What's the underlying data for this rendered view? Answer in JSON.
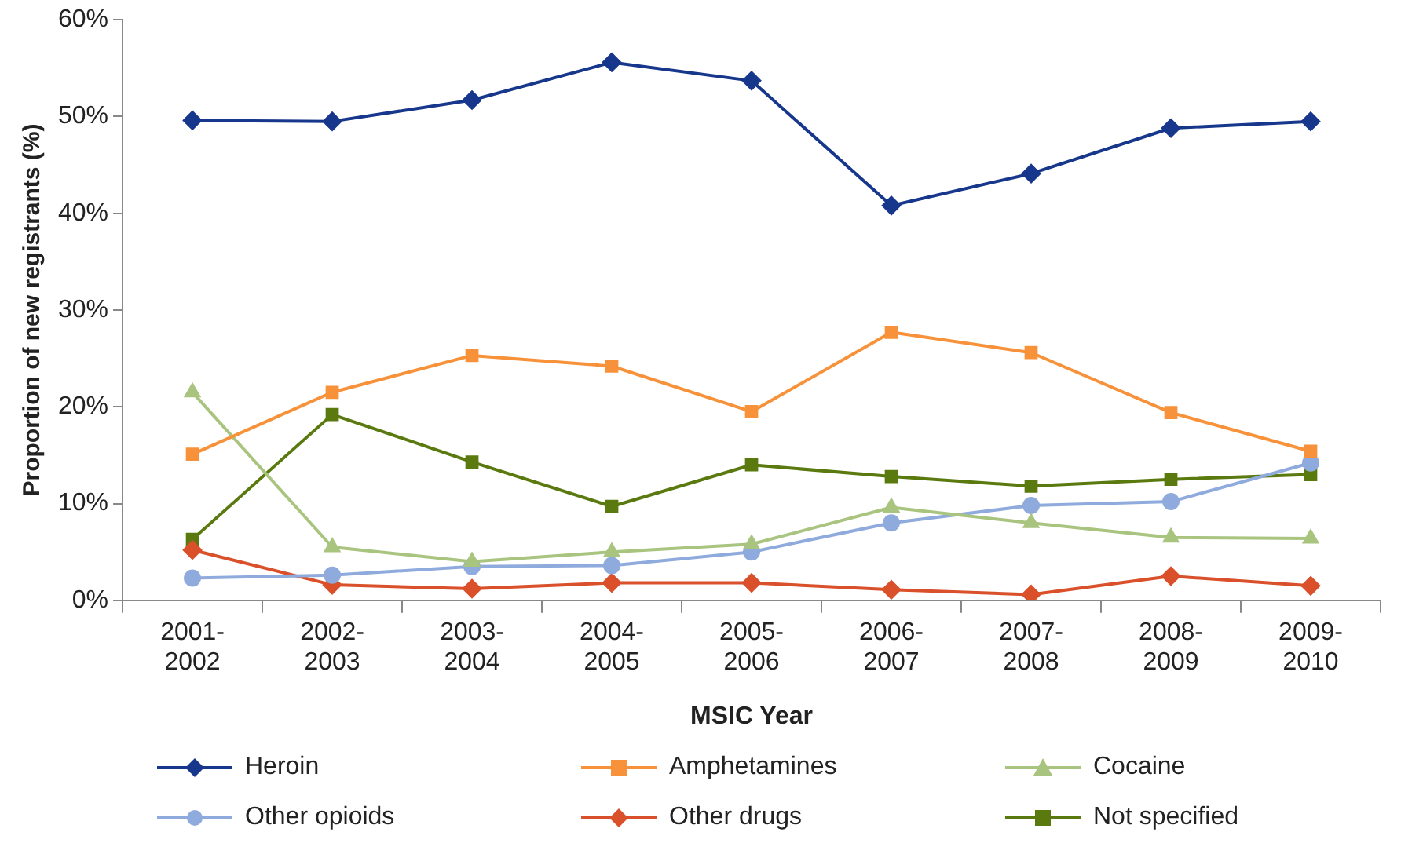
{
  "chart_data": {
    "type": "line",
    "xlabel": "MSIC Year",
    "ylabel": "Proportion of new registrants (%)",
    "categories": [
      "2001-2002",
      "2002-2003",
      "2003-2004",
      "2004-2005",
      "2005-2006",
      "2006-2007",
      "2007-2008",
      "2008-2009",
      "2009-2010"
    ],
    "ylim": [
      0,
      60
    ],
    "yticks": [
      {
        "value": 0,
        "label": "0%"
      },
      {
        "value": 10,
        "label": "10%"
      },
      {
        "value": 20,
        "label": "20%"
      },
      {
        "value": 30,
        "label": "30%"
      },
      {
        "value": 40,
        "label": "40%"
      },
      {
        "value": 50,
        "label": "50%"
      },
      {
        "value": 60,
        "label": "60%"
      }
    ],
    "grid": false,
    "legend": "bottom",
    "line_style": "solid",
    "series": [
      {
        "name": "Heroin",
        "color": "#17378c",
        "marker": "diamond",
        "values": [
          49.6,
          49.5,
          51.7,
          55.6,
          53.7,
          40.8,
          44.1,
          48.8,
          49.5
        ]
      },
      {
        "name": "Amphetamines",
        "color": "#f7923a",
        "marker": "square",
        "values": [
          15.1,
          21.5,
          25.3,
          24.2,
          19.5,
          27.7,
          25.6,
          19.4,
          15.4
        ]
      },
      {
        "name": "Cocaine",
        "color": "#a9c47f",
        "marker": "triangle",
        "values": [
          21.5,
          5.5,
          4.0,
          5.0,
          5.8,
          9.6,
          8.0,
          6.5,
          6.4
        ]
      },
      {
        "name": "Other opioids",
        "color": "#8faadc",
        "marker": "circle",
        "values": [
          2.3,
          2.6,
          3.5,
          3.6,
          5.0,
          8.0,
          9.8,
          10.2,
          14.2
        ]
      },
      {
        "name": "Other drugs",
        "color": "#d9502a",
        "marker": "diamond",
        "values": [
          5.2,
          1.6,
          1.2,
          1.8,
          1.8,
          1.1,
          0.6,
          2.5,
          1.5
        ]
      },
      {
        "name": "Not specified",
        "color": "#5a7a0f",
        "marker": "square",
        "values": [
          6.3,
          19.2,
          14.3,
          9.7,
          14.0,
          12.8,
          11.8,
          12.5,
          13.0
        ]
      }
    ]
  }
}
